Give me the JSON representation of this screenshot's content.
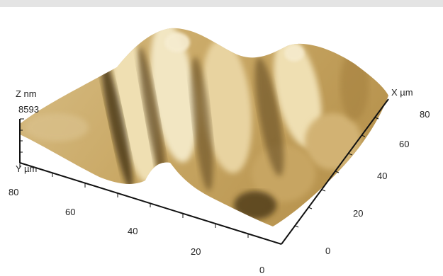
{
  "axes": {
    "z": {
      "label": "Z nm",
      "max_label": "8593"
    },
    "y": {
      "label": "Y µm",
      "ticks": [
        "80",
        "60",
        "40",
        "20"
      ]
    },
    "x": {
      "label": "X µm",
      "ticks": [
        "80",
        "60",
        "40",
        "20",
        "0"
      ]
    },
    "origin_label": "0"
  },
  "colors": {
    "surface_highlight": "#f2e6c2",
    "surface_mid": "#c9a865",
    "surface_shadow": "#3a2a10",
    "axis": "#111111",
    "top_bar": "#e4e4e4"
  }
}
